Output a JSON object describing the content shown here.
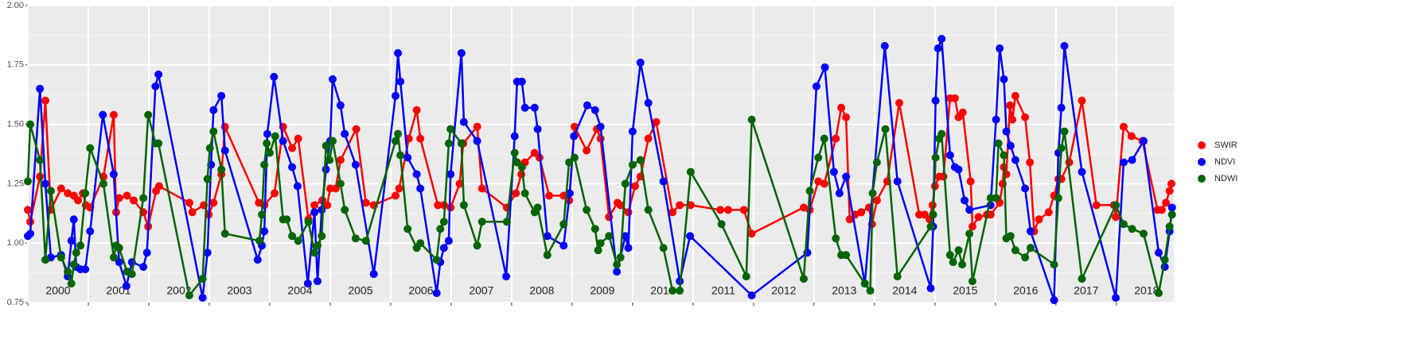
{
  "chart_data": {
    "type": "line",
    "xlim": [
      2000,
      2018.95
    ],
    "ylim": [
      0.75,
      2.0
    ],
    "yticks": [
      0.75,
      {
        "value": 1,
        "label": "1.00"
      },
      1.25,
      {
        "value": 1.5,
        "label": "1.50"
      },
      1.75,
      {
        "value": 2,
        "label": "2.00"
      }
    ],
    "xticks": [
      2000,
      2001,
      2002,
      2003,
      2004,
      2005,
      2006,
      2007,
      2008,
      2009,
      2010,
      2011,
      2012,
      2013,
      2014,
      2015,
      2016,
      2017,
      2018
    ],
    "grid": true,
    "legend": "right",
    "series": [
      {
        "name": "SWIR",
        "color": "#ff0000",
        "x": [
          2000.0,
          2000.04,
          2000.2,
          2000.29,
          2000.38,
          2000.55,
          2000.66,
          2000.76,
          2000.83,
          2000.91,
          2000.96,
          2001.03,
          2001.25,
          2001.42,
          2001.46,
          2001.51,
          2001.64,
          2001.75,
          2001.91,
          2001.99,
          2002.12,
          2002.17,
          2002.67,
          2002.72,
          2002.91,
          2002.99,
          2003.07,
          2003.2,
          2003.26,
          2003.82,
          2003.91,
          2004.08,
          2004.22,
          2004.37,
          2004.47,
          2004.64,
          2004.74,
          2004.87,
          2004.95,
          2005.0,
          2005.09,
          2005.17,
          2005.43,
          2005.59,
          2005.72,
          2006.08,
          2006.14,
          2006.3,
          2006.43,
          2006.49,
          2006.78,
          2006.88,
          2006.99,
          2007.14,
          2007.2,
          2007.43,
          2007.51,
          2007.92,
          2008.07,
          2008.16,
          2008.22,
          2008.38,
          2008.46,
          2008.62,
          2008.86,
          2008.95,
          2009.04,
          2009.24,
          2009.41,
          2009.47,
          2009.61,
          2009.75,
          2009.8,
          2009.93,
          2010.04,
          2010.13,
          2010.26,
          2010.39,
          2010.66,
          2010.78,
          2010.96,
          2011.45,
          2011.58,
          2011.84,
          2011.97,
          2012.83,
          2012.93,
          2013.07,
          2013.17,
          2013.36,
          2013.45,
          2013.53,
          2013.59,
          2013.68,
          2013.78,
          2013.91,
          2013.96,
          2014.04,
          2014.21,
          2014.41,
          2014.74,
          2014.83,
          2014.91,
          2014.96,
          2015.0,
          2015.07,
          2015.14,
          2015.25,
          2015.33,
          2015.39,
          2015.46,
          2015.59,
          2015.62,
          2015.72,
          2015.86,
          2015.92,
          2016.07,
          2016.12,
          2016.14,
          2016.18,
          2016.24,
          2016.28,
          2016.33,
          2016.49,
          2016.57,
          2016.64,
          2016.72,
          2016.88,
          2016.97,
          2017.04,
          2017.09,
          2017.22,
          2017.43,
          2017.67,
          2017.96,
          2017.99,
          2018.12,
          2018.25,
          2018.43,
          2018.68,
          2018.75,
          2018.82,
          2018.88,
          2018.91
        ],
        "values": [
          1.14,
          1.09,
          1.28,
          1.6,
          1.14,
          1.23,
          1.21,
          1.2,
          1.18,
          1.21,
          1.16,
          1.15,
          1.28,
          1.54,
          1.13,
          1.19,
          1.2,
          1.18,
          1.13,
          1.07,
          1.22,
          1.24,
          1.17,
          1.13,
          1.16,
          1.12,
          1.17,
          1.29,
          1.49,
          1.17,
          1.16,
          1.21,
          1.49,
          1.4,
          1.44,
          1.1,
          1.16,
          1.18,
          1.16,
          1.23,
          1.23,
          1.35,
          1.48,
          1.17,
          1.16,
          1.2,
          1.23,
          1.44,
          1.56,
          1.44,
          1.16,
          1.16,
          1.15,
          1.25,
          1.42,
          1.49,
          1.23,
          1.15,
          1.21,
          1.29,
          1.34,
          1.38,
          1.36,
          1.2,
          1.2,
          1.18,
          1.49,
          1.39,
          1.48,
          1.44,
          1.11,
          1.17,
          1.16,
          1.13,
          1.24,
          1.28,
          1.44,
          1.51,
          1.13,
          1.16,
          1.16,
          1.14,
          1.14,
          1.14,
          1.04,
          1.15,
          1.14,
          1.26,
          1.25,
          1.44,
          1.57,
          1.53,
          1.1,
          1.12,
          1.13,
          1.15,
          1.08,
          1.18,
          1.26,
          1.59,
          1.12,
          1.12,
          1.1,
          1.16,
          1.24,
          1.28,
          1.28,
          1.61,
          1.61,
          1.53,
          1.55,
          1.26,
          1.07,
          1.11,
          1.12,
          1.12,
          1.17,
          1.25,
          1.32,
          1.29,
          1.58,
          1.52,
          1.62,
          1.53,
          1.34,
          1.05,
          1.1,
          1.13,
          1.2,
          1.27,
          1.27,
          1.34,
          1.6,
          1.16,
          1.16,
          1.11,
          1.49,
          1.45,
          1.43,
          1.14,
          1.14,
          1.17,
          1.22,
          1.25
        ]
      },
      {
        "name": "NDVI",
        "color": "#0000ff",
        "x": [
          2000.0,
          2000.04,
          2000.2,
          2000.29,
          2000.38,
          2000.55,
          2000.66,
          2000.72,
          2000.76,
          2000.8,
          2000.87,
          2000.95,
          2001.03,
          2001.24,
          2001.42,
          2001.51,
          2001.63,
          2001.72,
          2001.91,
          2001.97,
          2002.11,
          2002.16,
          2002.89,
          2002.97,
          2003.03,
          2003.07,
          2003.2,
          2003.26,
          2003.8,
          2003.87,
          2003.91,
          2003.96,
          2004.07,
          2004.22,
          2004.37,
          2004.46,
          2004.63,
          2004.74,
          2004.79,
          2004.86,
          2004.93,
          2005.0,
          2005.04,
          2005.17,
          2005.24,
          2005.42,
          2005.72,
          2006.08,
          2006.12,
          2006.16,
          2006.28,
          2006.43,
          2006.49,
          2006.76,
          2006.82,
          2006.88,
          2006.96,
          2006.99,
          2007.17,
          2007.21,
          2007.43,
          2007.91,
          2008.05,
          2008.09,
          2008.17,
          2008.22,
          2008.38,
          2008.43,
          2008.59,
          2008.86,
          2008.96,
          2009.03,
          2009.25,
          2009.38,
          2009.47,
          2009.74,
          2009.88,
          2009.93,
          2010.0,
          2010.13,
          2010.26,
          2010.51,
          2010.78,
          2010.95,
          2011.97,
          2012.89,
          2013.04,
          2013.18,
          2013.33,
          2013.42,
          2013.53,
          2013.84,
          2014.17,
          2014.38,
          2014.93,
          2014.97,
          2015.01,
          2015.05,
          2015.11,
          2015.25,
          2015.33,
          2015.39,
          2015.49,
          2015.57,
          2015.92,
          2016.01,
          2016.07,
          2016.14,
          2016.18,
          2016.25,
          2016.33,
          2016.49,
          2016.58,
          2016.97,
          2017.04,
          2017.09,
          2017.14,
          2017.43,
          2017.99,
          2018.12,
          2018.26,
          2018.45,
          2018.7,
          2018.8,
          2018.88,
          2018.92
        ],
        "values": [
          1.03,
          1.04,
          1.65,
          1.25,
          0.94,
          0.95,
          0.86,
          1.01,
          1.1,
          0.9,
          0.89,
          0.89,
          1.05,
          1.54,
          1.29,
          0.92,
          0.82,
          0.92,
          0.9,
          0.96,
          1.66,
          1.71,
          0.77,
          0.96,
          1.33,
          1.56,
          1.62,
          1.39,
          0.93,
          0.99,
          1.05,
          1.46,
          1.7,
          1.43,
          1.32,
          1.24,
          0.83,
          1.13,
          0.84,
          1.14,
          1.31,
          1.43,
          1.69,
          1.58,
          1.46,
          1.33,
          0.87,
          1.62,
          1.8,
          1.68,
          1.36,
          1.29,
          1.23,
          0.79,
          0.92,
          0.98,
          1.01,
          1.29,
          1.8,
          1.51,
          1.43,
          0.86,
          1.45,
          1.68,
          1.68,
          1.57,
          1.57,
          1.48,
          1.03,
          0.99,
          1.21,
          1.45,
          1.58,
          1.56,
          1.49,
          0.88,
          1.03,
          0.98,
          1.47,
          1.76,
          1.59,
          1.26,
          0.84,
          1.03,
          0.78,
          0.96,
          1.66,
          1.74,
          1.3,
          1.21,
          1.28,
          0.83,
          1.83,
          1.26,
          0.81,
          1.07,
          1.6,
          1.82,
          1.86,
          1.37,
          1.32,
          1.31,
          1.18,
          1.14,
          1.16,
          1.52,
          1.82,
          1.69,
          1.47,
          1.41,
          1.35,
          1.23,
          1.05,
          0.76,
          1.38,
          1.57,
          1.83,
          1.3,
          0.77,
          1.34,
          1.35,
          1.43,
          0.96,
          0.9,
          1.05,
          1.15
        ]
      },
      {
        "name": "NDWI",
        "color": "#006400",
        "x": [
          2000.0,
          2000.04,
          2000.2,
          2000.29,
          2000.38,
          2000.55,
          2000.66,
          2000.72,
          2000.76,
          2000.8,
          2000.87,
          2000.95,
          2001.03,
          2001.25,
          2001.42,
          2001.46,
          2001.51,
          2001.64,
          2001.72,
          2001.91,
          2001.99,
          2002.11,
          2002.16,
          2002.67,
          2002.89,
          2002.97,
          2003.01,
          2003.07,
          2003.2,
          2003.26,
          2003.83,
          2003.87,
          2003.91,
          2003.95,
          2004.0,
          2004.09,
          2004.22,
          2004.28,
          2004.37,
          2004.47,
          2004.64,
          2004.74,
          2004.79,
          2004.86,
          2004.93,
          2004.99,
          2005.04,
          2005.17,
          2005.24,
          2005.42,
          2005.59,
          2006.08,
          2006.12,
          2006.16,
          2006.28,
          2006.43,
          2006.49,
          2006.76,
          2006.82,
          2006.88,
          2006.96,
          2006.99,
          2007.17,
          2007.21,
          2007.43,
          2007.51,
          2007.92,
          2008.05,
          2008.09,
          2008.17,
          2008.22,
          2008.38,
          2008.43,
          2008.59,
          2008.86,
          2008.95,
          2009.04,
          2009.24,
          2009.38,
          2009.43,
          2009.47,
          2009.61,
          2009.74,
          2009.8,
          2009.88,
          2010.0,
          2010.13,
          2010.26,
          2010.51,
          2010.66,
          2010.78,
          2010.96,
          2011.47,
          2011.88,
          2011.97,
          2012.83,
          2012.93,
          2013.07,
          2013.17,
          2013.36,
          2013.45,
          2013.53,
          2013.84,
          2013.93,
          2013.97,
          2014.04,
          2014.18,
          2014.38,
          2014.93,
          2014.97,
          2015.01,
          2015.07,
          2015.11,
          2015.25,
          2015.3,
          2015.39,
          2015.45,
          2015.57,
          2015.62,
          2015.92,
          2016.01,
          2016.05,
          2016.14,
          2016.18,
          2016.25,
          2016.33,
          2016.49,
          2016.58,
          2016.97,
          2017.04,
          2017.09,
          2017.14,
          2017.43,
          2017.99,
          2018.12,
          2018.26,
          2018.45,
          2018.7,
          2018.8,
          2018.88,
          2018.92
        ],
        "values": [
          1.26,
          1.5,
          1.35,
          0.93,
          1.22,
          0.94,
          0.88,
          0.83,
          0.91,
          0.96,
          0.99,
          1.21,
          1.4,
          1.25,
          0.94,
          0.99,
          0.98,
          0.88,
          0.87,
          1.19,
          1.54,
          1.42,
          1.42,
          0.78,
          0.85,
          1.27,
          1.4,
          1.47,
          1.31,
          1.04,
          1.01,
          1.12,
          1.33,
          1.42,
          1.38,
          1.45,
          1.1,
          1.1,
          1.03,
          1.01,
          1.09,
          0.96,
          0.99,
          1.03,
          1.41,
          1.35,
          1.43,
          1.25,
          1.14,
          1.02,
          1.01,
          1.43,
          1.46,
          1.37,
          1.06,
          0.98,
          1.0,
          0.93,
          1.06,
          1.09,
          1.42,
          1.48,
          1.42,
          1.16,
          0.99,
          1.09,
          1.09,
          1.38,
          1.34,
          1.32,
          1.21,
          1.13,
          1.15,
          0.95,
          1.08,
          1.34,
          1.36,
          1.14,
          1.06,
          0.97,
          1.0,
          1.03,
          0.91,
          0.94,
          1.25,
          1.33,
          1.35,
          1.14,
          0.98,
          0.8,
          0.8,
          1.3,
          1.08,
          0.86,
          1.52,
          0.85,
          1.22,
          1.36,
          1.44,
          1.02,
          0.95,
          0.95,
          0.83,
          0.8,
          1.21,
          1.34,
          1.48,
          0.86,
          1.07,
          1.12,
          1.36,
          1.44,
          1.46,
          0.95,
          0.92,
          0.97,
          0.91,
          1.04,
          0.84,
          1.19,
          1.19,
          1.42,
          1.37,
          1.02,
          1.03,
          0.97,
          0.94,
          0.98,
          0.91,
          1.19,
          1.4,
          1.47,
          0.85,
          1.16,
          1.08,
          1.06,
          1.04,
          0.79,
          0.93,
          1.07,
          1.12
        ]
      }
    ]
  }
}
